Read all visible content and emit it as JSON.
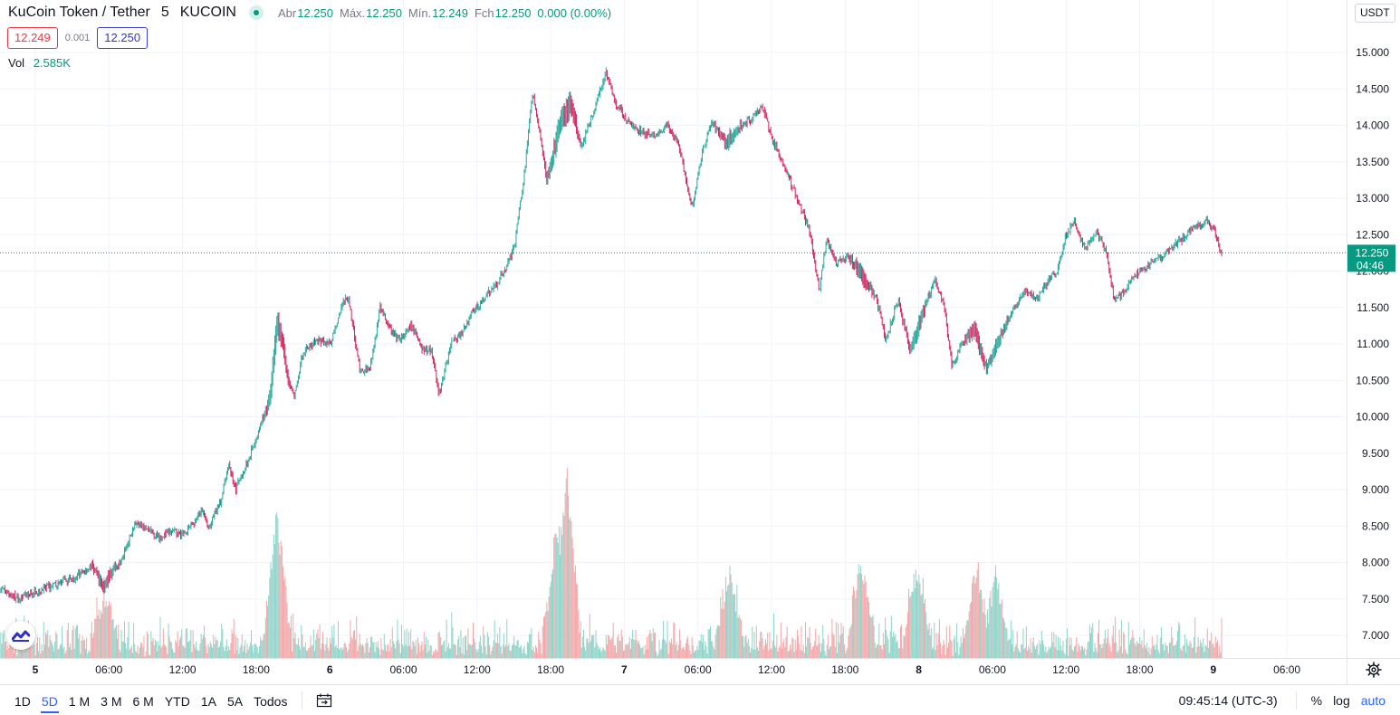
{
  "symbol": {
    "name": "KuCoin Token / Tether",
    "interval": "5",
    "exchange": "KUCOIN",
    "status_icon": "market-open-dot"
  },
  "ohlc": {
    "open_label": "Abr",
    "open": "12.250",
    "high_label": "Máx.",
    "high": "12.250",
    "low_label": "Mín.",
    "low": "12.249",
    "close_label": "Fch",
    "close": "12.250",
    "change": "0.000 (0.00%)"
  },
  "quote": {
    "bid": "12.249",
    "spread": "0.001",
    "ask": "12.250"
  },
  "volume": {
    "label": "Vol",
    "value": "2.585K"
  },
  "currency": "USDT",
  "price_label": {
    "price": "12.250",
    "countdown": "04:46"
  },
  "timeframes": [
    "1D",
    "5D",
    "1 M",
    "3 M",
    "6 M",
    "YTD",
    "1A",
    "5A",
    "Todos"
  ],
  "active_timeframe": "5D",
  "clock": "09:45:14 (UTC-3)",
  "scale_options": {
    "percent": "%",
    "log": "log",
    "auto": "auto"
  },
  "colors": {
    "up": "#26a69a",
    "down": "#d1205e",
    "vol_up": "#8fd3c9",
    "vol_down": "#f4a6a8",
    "accent": "#2962ff",
    "last_price": "#089981"
  },
  "icons": {
    "logo": "tradingview-logo-icon",
    "settings": "gear-icon",
    "goto_date": "calendar-goto-icon"
  },
  "chart_data": {
    "type": "candlestick",
    "interval_minutes": 5,
    "y_axis": {
      "ticks": [
        "7.000",
        "7.500",
        "8.000",
        "8.500",
        "9.000",
        "9.500",
        "10.000",
        "10.500",
        "11.000",
        "11.500",
        "12.000",
        "12.500",
        "13.000",
        "13.500",
        "14.000",
        "14.500",
        "15.000"
      ],
      "range": [
        6.7,
        15.6
      ]
    },
    "x_axis": {
      "ticks": [
        "5",
        "06:00",
        "12:00",
        "18:00",
        "6",
        "06:00",
        "12:00",
        "18:00",
        "7",
        "06:00",
        "12:00",
        "18:00",
        "8",
        "06:00",
        "12:00",
        "18:00",
        "9",
        "06:00"
      ],
      "bold_ticks": [
        "5",
        "6",
        "7",
        "8",
        "9"
      ]
    },
    "last_price": 12.25,
    "price_path": [
      [
        0,
        7.65
      ],
      [
        1.5,
        7.5
      ],
      [
        3,
        7.6
      ],
      [
        5,
        7.72
      ],
      [
        6,
        7.78
      ],
      [
        7.5,
        7.95
      ],
      [
        8.5,
        7.65
      ],
      [
        9,
        7.85
      ],
      [
        10,
        8.05
      ],
      [
        11,
        8.55
      ],
      [
        12,
        8.45
      ],
      [
        13,
        8.35
      ],
      [
        14,
        8.42
      ],
      [
        15,
        8.4
      ],
      [
        16,
        8.58
      ],
      [
        16.5,
        8.72
      ],
      [
        17,
        8.45
      ],
      [
        18,
        8.85
      ],
      [
        18.7,
        9.35
      ],
      [
        19.2,
        9.0
      ],
      [
        20,
        9.3
      ],
      [
        21,
        9.75
      ],
      [
        22,
        10.25
      ],
      [
        22.6,
        11.3
      ],
      [
        23,
        11.05
      ],
      [
        23.4,
        10.6
      ],
      [
        24,
        10.25
      ],
      [
        24.6,
        10.8
      ],
      [
        25,
        10.95
      ],
      [
        26,
        11.05
      ],
      [
        27,
        11.0
      ],
      [
        27.8,
        11.5
      ],
      [
        28.4,
        11.65
      ],
      [
        29.4,
        10.6
      ],
      [
        30.2,
        10.7
      ],
      [
        31,
        11.5
      ],
      [
        31.8,
        11.2
      ],
      [
        32.6,
        11.05
      ],
      [
        33.6,
        11.25
      ],
      [
        34.4,
        10.95
      ],
      [
        35.2,
        10.9
      ],
      [
        35.8,
        10.3
      ],
      [
        36.8,
        11.0
      ],
      [
        37.8,
        11.2
      ],
      [
        38.6,
        11.45
      ],
      [
        39.6,
        11.65
      ],
      [
        40.4,
        11.8
      ],
      [
        41.4,
        12.1
      ],
      [
        42,
        12.4
      ],
      [
        42.8,
        13.4
      ],
      [
        43.4,
        14.45
      ],
      [
        44,
        13.9
      ],
      [
        44.6,
        13.25
      ],
      [
        45.6,
        14.0
      ],
      [
        46.5,
        14.3
      ],
      [
        47.4,
        13.7
      ],
      [
        48.4,
        14.2
      ],
      [
        49.4,
        14.75
      ],
      [
        50.2,
        14.3
      ],
      [
        51.2,
        14.05
      ],
      [
        52.4,
        13.9
      ],
      [
        53.4,
        13.85
      ],
      [
        54.4,
        14.0
      ],
      [
        55.4,
        13.7
      ],
      [
        56.4,
        12.85
      ],
      [
        57.2,
        13.6
      ],
      [
        58,
        14.05
      ],
      [
        59.2,
        13.75
      ],
      [
        60.4,
        14.0
      ],
      [
        61.4,
        14.1
      ],
      [
        62.2,
        14.25
      ],
      [
        63,
        13.8
      ],
      [
        64,
        13.4
      ],
      [
        65,
        13.0
      ],
      [
        66,
        12.55
      ],
      [
        66.8,
        11.75
      ],
      [
        67.4,
        12.45
      ],
      [
        68.2,
        12.1
      ],
      [
        69.2,
        12.2
      ],
      [
        70.2,
        11.95
      ],
      [
        71.4,
        11.65
      ],
      [
        72.2,
        11.05
      ],
      [
        73.2,
        11.6
      ],
      [
        74.2,
        10.9
      ],
      [
        75.2,
        11.4
      ],
      [
        76.2,
        11.9
      ],
      [
        77,
        11.5
      ],
      [
        77.6,
        10.7
      ],
      [
        78.4,
        11.0
      ],
      [
        79.4,
        11.2
      ],
      [
        80.4,
        10.65
      ],
      [
        81.2,
        11.0
      ],
      [
        82.4,
        11.4
      ],
      [
        83.6,
        11.75
      ],
      [
        84.4,
        11.6
      ],
      [
        85.4,
        11.85
      ],
      [
        86.2,
        12.0
      ],
      [
        86.8,
        12.45
      ],
      [
        87.6,
        12.7
      ],
      [
        88.4,
        12.3
      ],
      [
        89.4,
        12.55
      ],
      [
        90.2,
        12.25
      ],
      [
        90.8,
        11.6
      ],
      [
        91.6,
        11.7
      ],
      [
        92.4,
        11.95
      ],
      [
        93.4,
        12.05
      ],
      [
        94.4,
        12.15
      ],
      [
        95.4,
        12.3
      ],
      [
        96.4,
        12.45
      ],
      [
        97.4,
        12.6
      ],
      [
        98.4,
        12.7
      ],
      [
        99,
        12.55
      ],
      [
        99.6,
        12.22
      ]
    ],
    "volume_spikes": [
      [
        8.6,
        0.3
      ],
      [
        22.6,
        0.75
      ],
      [
        45.4,
        0.68
      ],
      [
        46.2,
        1.0
      ],
      [
        59.5,
        0.42
      ],
      [
        70.2,
        0.5
      ],
      [
        74.8,
        0.45
      ],
      [
        79.6,
        0.45
      ],
      [
        81.2,
        0.38
      ]
    ]
  }
}
